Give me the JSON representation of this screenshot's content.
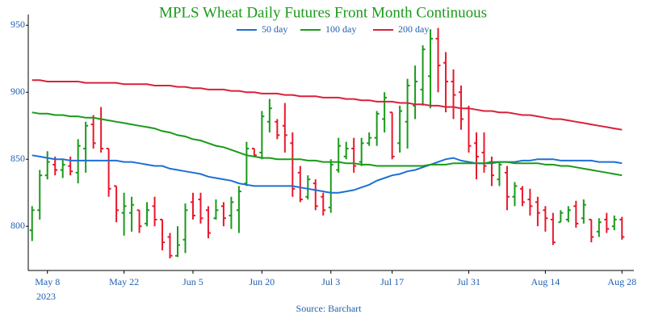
{
  "chart_data": {
    "type": "ohlc",
    "title": "MPLS Wheat Daily Futures Front Month Continuous",
    "source": "Source: Barchart",
    "x_year_label": "2023",
    "categories": [
      null,
      null,
      "May 8",
      null,
      null,
      null,
      null,
      null,
      null,
      null,
      null,
      null,
      "May 22",
      null,
      null,
      null,
      null,
      null,
      null,
      null,
      null,
      "Jun 5",
      null,
      null,
      null,
      null,
      null,
      null,
      null,
      null,
      "Jun 20",
      null,
      null,
      null,
      null,
      null,
      null,
      null,
      null,
      "Jul 3",
      null,
      null,
      null,
      null,
      null,
      null,
      null,
      "Jul 17",
      null,
      null,
      null,
      null,
      null,
      null,
      null,
      null,
      null,
      "Jul 31",
      null,
      null,
      null,
      null,
      null,
      null,
      null,
      null,
      null,
      "Aug 14",
      null,
      null,
      null,
      null,
      null,
      null,
      null,
      null,
      null,
      "Aug 28"
    ],
    "ohlc": [
      [
        797,
        815,
        789,
        812
      ],
      [
        812,
        842,
        805,
        838
      ],
      [
        838,
        856,
        835,
        848
      ],
      [
        846,
        852,
        838,
        842
      ],
      [
        842,
        850,
        836,
        846
      ],
      [
        845,
        852,
        838,
        841
      ],
      [
        840,
        865,
        832,
        860
      ],
      [
        858,
        878,
        840,
        875
      ],
      [
        876,
        883,
        858,
        862
      ],
      [
        880,
        889,
        855,
        858
      ],
      [
        858,
        858,
        822,
        828
      ],
      [
        830,
        830,
        803,
        812
      ],
      [
        810,
        825,
        793,
        815
      ],
      [
        810,
        822,
        796,
        816
      ],
      [
        812,
        812,
        795,
        800
      ],
      [
        802,
        818,
        800,
        812
      ],
      [
        815,
        822,
        800,
        805
      ],
      [
        805,
        805,
        782,
        788
      ],
      [
        792,
        795,
        776,
        778
      ],
      [
        778,
        800,
        777,
        786
      ],
      [
        790,
        817,
        780,
        812
      ],
      [
        818,
        825,
        805,
        808
      ],
      [
        820,
        825,
        802,
        806
      ],
      [
        812,
        815,
        791,
        795
      ],
      [
        806,
        820,
        805,
        812
      ],
      [
        815,
        818,
        800,
        806
      ],
      [
        808,
        822,
        798,
        818
      ],
      [
        812,
        830,
        795,
        826
      ],
      [
        832,
        863,
        830,
        858
      ],
      [
        858,
        858,
        852,
        853
      ],
      [
        855,
        886,
        850,
        882
      ],
      [
        878,
        895,
        870,
        888
      ],
      [
        878,
        880,
        865,
        868
      ],
      [
        875,
        892,
        855,
        868
      ],
      [
        862,
        870,
        822,
        828
      ],
      [
        840,
        845,
        818,
        820
      ],
      [
        822,
        838,
        820,
        835
      ],
      [
        832,
        835,
        812,
        815
      ],
      [
        822,
        825,
        808,
        812
      ],
      [
        814,
        850,
        810,
        846
      ],
      [
        842,
        866,
        840,
        860
      ],
      [
        852,
        863,
        850,
        858
      ],
      [
        858,
        866,
        840,
        845
      ],
      [
        848,
        866,
        845,
        862
      ],
      [
        862,
        870,
        860,
        866
      ],
      [
        866,
        886,
        860,
        884
      ],
      [
        880,
        900,
        870,
        896
      ],
      [
        885,
        885,
        850,
        852
      ],
      [
        862,
        890,
        855,
        886
      ],
      [
        878,
        910,
        858,
        905
      ],
      [
        890,
        920,
        880,
        908
      ],
      [
        902,
        935,
        890,
        932
      ],
      [
        912,
        947,
        888,
        940
      ],
      [
        940,
        948,
        900,
        920
      ],
      [
        922,
        930,
        885,
        908
      ],
      [
        908,
        917,
        880,
        898
      ],
      [
        900,
        905,
        872,
        880
      ],
      [
        888,
        890,
        855,
        860
      ],
      [
        862,
        870,
        835,
        852
      ],
      [
        855,
        870,
        840,
        845
      ],
      [
        848,
        852,
        830,
        838
      ],
      [
        835,
        848,
        830,
        846
      ],
      [
        840,
        845,
        812,
        822
      ],
      [
        822,
        833,
        815,
        830
      ],
      [
        828,
        830,
        815,
        818
      ],
      [
        820,
        828,
        808,
        815
      ],
      [
        818,
        822,
        800,
        810
      ],
      [
        812,
        815,
        796,
        806
      ],
      [
        805,
        810,
        786,
        788
      ],
      [
        803,
        812,
        803,
        810
      ],
      [
        805,
        815,
        803,
        812
      ],
      [
        815,
        819,
        799,
        802
      ],
      [
        806,
        820,
        802,
        816
      ],
      [
        805,
        805,
        788,
        792
      ],
      [
        796,
        806,
        792,
        803
      ],
      [
        805,
        810,
        795,
        798
      ],
      [
        800,
        808,
        797,
        805
      ],
      [
        805,
        807,
        790,
        792
      ]
    ],
    "up_color": "#1a9a1a",
    "down_color": "#e8192c",
    "series": [
      {
        "name": "50 day",
        "color": "#1f6fd6",
        "values": [
          853,
          852,
          851,
          850,
          850,
          849,
          849,
          849,
          849,
          849,
          849,
          849,
          848,
          848,
          847,
          846,
          845,
          845,
          843,
          842,
          841,
          840,
          839,
          837,
          836,
          835,
          834,
          832,
          831,
          830,
          830,
          830,
          830,
          830,
          830,
          829,
          828,
          827,
          826,
          825,
          825,
          826,
          827,
          829,
          831,
          834,
          836,
          838,
          839,
          841,
          842,
          844,
          846,
          848,
          850,
          851,
          849,
          848,
          847,
          847,
          847,
          848,
          848,
          848,
          849,
          849,
          850,
          850,
          850,
          849,
          849,
          849,
          849,
          849,
          848,
          848,
          848,
          847
        ]
      },
      {
        "name": "100 day",
        "color": "#1a9a1a",
        "values": [
          885,
          884,
          884,
          883,
          883,
          882,
          882,
          881,
          881,
          880,
          879,
          878,
          877,
          876,
          875,
          874,
          873,
          871,
          870,
          868,
          867,
          865,
          864,
          862,
          860,
          859,
          857,
          855,
          853,
          852,
          851,
          851,
          850,
          850,
          850,
          850,
          849,
          849,
          848,
          848,
          848,
          847,
          847,
          846,
          846,
          845,
          845,
          845,
          845,
          845,
          845,
          845,
          846,
          846,
          846,
          847,
          847,
          847,
          847,
          847,
          848,
          848,
          848,
          847,
          847,
          847,
          847,
          846,
          846,
          845,
          845,
          844,
          843,
          842,
          841,
          840,
          839,
          838
        ]
      },
      {
        "name": "200 day",
        "color": "#d9213a",
        "values": [
          909,
          909,
          908,
          908,
          908,
          908,
          908,
          907,
          907,
          907,
          907,
          907,
          906,
          906,
          906,
          906,
          905,
          905,
          905,
          904,
          904,
          903,
          903,
          902,
          902,
          902,
          901,
          901,
          900,
          900,
          899,
          899,
          899,
          898,
          898,
          897,
          897,
          897,
          896,
          896,
          896,
          895,
          895,
          894,
          894,
          893,
          893,
          893,
          892,
          892,
          891,
          891,
          890,
          890,
          889,
          889,
          888,
          888,
          887,
          886,
          886,
          885,
          885,
          884,
          883,
          883,
          882,
          881,
          880,
          880,
          879,
          878,
          877,
          876,
          875,
          874,
          873,
          872
        ]
      }
    ],
    "ylim": [
      767,
      958
    ],
    "yticks": [
      800,
      850,
      900,
      950
    ],
    "grid": false
  }
}
